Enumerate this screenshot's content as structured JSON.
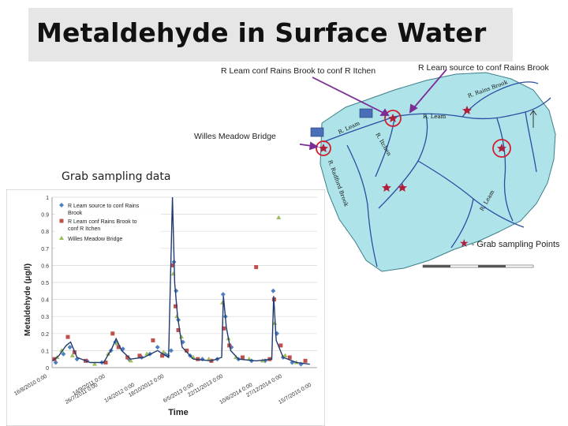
{
  "title": "Metaldehyde in Surface Water",
  "labels": {
    "site_rains_to_itchen": "R Leam conf Rains Brook to conf R Itchen",
    "site_source_to_rains": "R Leam source to conf Rains Brook",
    "site_willes": "Willes Meadow Bridge",
    "grab_sampling": "Grab sampling data",
    "grab_points_key": "- Grab sampling Points"
  },
  "map": {
    "river_labels": [
      "R. Leam",
      "R. Leam",
      "R. Itchen",
      "R. Rains Brook",
      "R. Leam",
      "R. Radford Brook"
    ],
    "colors": {
      "land": "#aee3ea",
      "river": "#2a4ea0",
      "marker": "#b21f3a",
      "highlight": "#d11f2e",
      "arrow": "#7b2d96"
    }
  },
  "chart_data": {
    "type": "scatter",
    "xlabel": "Time",
    "ylabel": "Metaldehyde (μg/l)",
    "ylim": [
      0,
      1
    ],
    "yticks": [
      0,
      0.1,
      0.2,
      0.3,
      0.4,
      0.5,
      0.6,
      0.7,
      0.8,
      0.9,
      1
    ],
    "xlim": [
      "2010-08-16",
      "2015-07-20"
    ],
    "xticks": [
      "16/8/2010 0:00",
      "26/7/2011 0:00",
      "14/9/2011 0:00",
      "1/4/2012 0:00",
      "18/10/2012 0:00",
      "6/5/2013 0:00",
      "22/11/2013 0:00",
      "10/6/2014 0:00",
      "27/12/2014 0:00",
      "15/7/2015 0:00"
    ],
    "legend": "top-left",
    "grid": true,
    "series": [
      {
        "name": "R Leam source to conf Rains Brook",
        "marker": "diamond",
        "color": "#4f7fbf",
        "points": [
          [
            "2010-09-10",
            0.03
          ],
          [
            "2010-11-01",
            0.08
          ],
          [
            "2010-12-15",
            0.12
          ],
          [
            "2011-02-01",
            0.05
          ],
          [
            "2011-04-10",
            0.04
          ],
          [
            "2011-07-20",
            0.03
          ],
          [
            "2011-09-20",
            0.1
          ],
          [
            "2011-10-20",
            0.15
          ],
          [
            "2011-12-10",
            0.11
          ],
          [
            "2012-01-20",
            0.05
          ],
          [
            "2012-04-15",
            0.06
          ],
          [
            "2012-06-10",
            0.08
          ],
          [
            "2012-08-01",
            0.12
          ],
          [
            "2012-09-20",
            0.08
          ],
          [
            "2012-10-10",
            0.07
          ],
          [
            "2012-11-01",
            0.1
          ],
          [
            "2012-11-20",
            0.62
          ],
          [
            "2012-12-05",
            0.45
          ],
          [
            "2012-12-20",
            0.28
          ],
          [
            "2013-01-20",
            0.15
          ],
          [
            "2013-03-10",
            0.07
          ],
          [
            "2013-06-01",
            0.05
          ],
          [
            "2013-09-10",
            0.05
          ],
          [
            "2013-10-20",
            0.43
          ],
          [
            "2013-11-05",
            0.3
          ],
          [
            "2013-12-15",
            0.12
          ],
          [
            "2014-02-01",
            0.05
          ],
          [
            "2014-05-01",
            0.04
          ],
          [
            "2014-08-01",
            0.04
          ],
          [
            "2014-09-25",
            0.45
          ],
          [
            "2014-10-20",
            0.2
          ],
          [
            "2014-12-01",
            0.06
          ],
          [
            "2015-02-01",
            0.03
          ],
          [
            "2015-04-01",
            0.02
          ]
        ]
      },
      {
        "name": "R Leam conf Rains Brook to conf R Itchen",
        "marker": "square",
        "color": "#c0504d",
        "points": [
          [
            "2010-09-01",
            0.05
          ],
          [
            "2010-12-01",
            0.18
          ],
          [
            "2011-01-15",
            0.09
          ],
          [
            "2011-04-01",
            0.04
          ],
          [
            "2011-08-15",
            0.03
          ],
          [
            "2011-10-01",
            0.2
          ],
          [
            "2011-11-10",
            0.12
          ],
          [
            "2012-01-10",
            0.06
          ],
          [
            "2012-04-01",
            0.07
          ],
          [
            "2012-07-01",
            0.16
          ],
          [
            "2012-09-01",
            0.07
          ],
          [
            "2012-11-10",
            0.6
          ],
          [
            "2012-12-01",
            0.36
          ],
          [
            "2012-12-20",
            0.22
          ],
          [
            "2013-02-15",
            0.1
          ],
          [
            "2013-05-01",
            0.05
          ],
          [
            "2013-08-01",
            0.04
          ],
          [
            "2013-10-25",
            0.23
          ],
          [
            "2013-12-01",
            0.13
          ],
          [
            "2014-03-01",
            0.06
          ],
          [
            "2014-06-01",
            0.59
          ],
          [
            "2014-09-01",
            0.05
          ],
          [
            "2014-10-01",
            0.4
          ],
          [
            "2014-11-15",
            0.13
          ],
          [
            "2015-01-15",
            0.06
          ],
          [
            "2015-05-01",
            0.04
          ]
        ]
      },
      {
        "name": "Willes Meadow Bridge",
        "marker": "triangle",
        "color": "#9bbb59",
        "points": [
          [
            "2010-09-20",
            0.06
          ],
          [
            "2010-10-20",
            0.1
          ],
          [
            "2011-01-01",
            0.07
          ],
          [
            "2011-06-01",
            0.02
          ],
          [
            "2011-09-01",
            0.08
          ],
          [
            "2011-11-01",
            0.14
          ],
          [
            "2012-02-01",
            0.04
          ],
          [
            "2012-05-20",
            0.08
          ],
          [
            "2012-09-10",
            0.09
          ],
          [
            "2012-11-15",
            0.55
          ],
          [
            "2012-12-10",
            0.3
          ],
          [
            "2013-01-10",
            0.18
          ],
          [
            "2013-04-01",
            0.06
          ],
          [
            "2013-07-15",
            0.05
          ],
          [
            "2013-10-15",
            0.38
          ],
          [
            "2013-11-25",
            0.17
          ],
          [
            "2014-01-15",
            0.06
          ],
          [
            "2014-04-15",
            0.05
          ],
          [
            "2014-07-15",
            0.04
          ],
          [
            "2014-10-05",
            0.26
          ],
          [
            "2014-11-01",
            0.88
          ],
          [
            "2014-12-15",
            0.07
          ],
          [
            "2015-03-01",
            0.03
          ]
        ]
      },
      {
        "name": "",
        "type": "line",
        "color": "#1f3a6e",
        "points": [
          [
            "2010-08-20",
            0.04
          ],
          [
            "2010-10-01",
            0.07
          ],
          [
            "2010-11-20",
            0.13
          ],
          [
            "2010-12-20",
            0.15
          ],
          [
            "2011-02-01",
            0.06
          ],
          [
            "2011-05-01",
            0.03
          ],
          [
            "2011-08-01",
            0.03
          ],
          [
            "2011-09-25",
            0.11
          ],
          [
            "2011-10-25",
            0.17
          ],
          [
            "2011-12-01",
            0.1
          ],
          [
            "2012-02-01",
            0.05
          ],
          [
            "2012-05-01",
            0.06
          ],
          [
            "2012-08-01",
            0.1
          ],
          [
            "2012-10-15",
            0.06
          ],
          [
            "2012-11-10",
            1.0
          ],
          [
            "2012-11-25",
            0.5
          ],
          [
            "2012-12-15",
            0.3
          ],
          [
            "2013-01-15",
            0.12
          ],
          [
            "2013-04-01",
            0.05
          ],
          [
            "2013-08-01",
            0.04
          ],
          [
            "2013-10-10",
            0.06
          ],
          [
            "2013-10-22",
            0.42
          ],
          [
            "2013-11-10",
            0.24
          ],
          [
            "2013-12-10",
            0.1
          ],
          [
            "2014-02-01",
            0.05
          ],
          [
            "2014-06-01",
            0.04
          ],
          [
            "2014-09-15",
            0.05
          ],
          [
            "2014-09-28",
            0.42
          ],
          [
            "2014-10-15",
            0.16
          ],
          [
            "2014-12-01",
            0.06
          ],
          [
            "2015-03-01",
            0.03
          ],
          [
            "2015-06-01",
            0.02
          ]
        ]
      }
    ]
  }
}
